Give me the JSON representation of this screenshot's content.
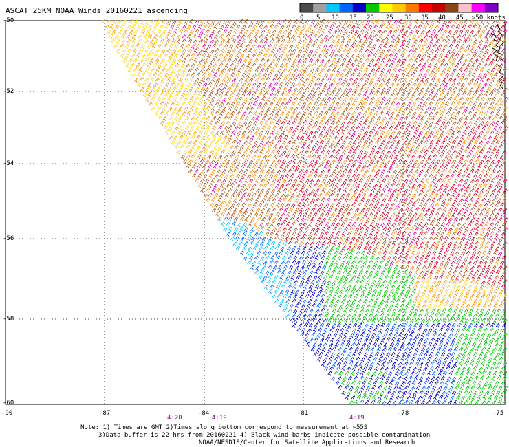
{
  "title": "ASCAT 25KM NOAA Winds 20160221 ascending",
  "colorbar": {
    "labels": [
      "0",
      "5",
      "10",
      "15",
      "20",
      "25",
      "30",
      "35",
      "40",
      "45",
      ">50 knots"
    ],
    "colors": [
      "#4a4a4a",
      "#a0a0a0",
      "#00c8ff",
      "#0064ff",
      "#0000c8",
      "#00c800",
      "#ffff00",
      "#ffc800",
      "#ff7800",
      "#ff0000",
      "#c80000",
      "#8b4513",
      "#ffc0cb",
      "#ff00ff",
      "#8000c8"
    ]
  },
  "lat_labels": [
    "-50",
    "-52",
    "-54",
    "-56",
    "-58",
    "-60"
  ],
  "lon_labels": [
    "-90",
    "-87",
    "-84",
    "-81",
    "-78",
    "-75"
  ],
  "time_labels": [
    "4:20",
    "4:19",
    "4:19"
  ],
  "note": {
    "line1": "Note: 1) Times are GMT 2)Times along bottom correspond to measurement at ~55S",
    "line2": "3)Data buffer is 22 hrs from 20160221 4) Black wind barbs indicate possible contamination",
    "line3": "NOAA/NESDIS/Center for Satellite Applications and Research"
  },
  "legend_colors": {
    "blue_dark": "#0000c8",
    "blue": "#0064ff",
    "cyan": "#00c8ff",
    "green": "#00c800",
    "yellow": "#ffd400",
    "orange": "#ff9000",
    "brown": "#b05a1e",
    "red": "#d8002a",
    "magenta": "#e000b0"
  }
}
